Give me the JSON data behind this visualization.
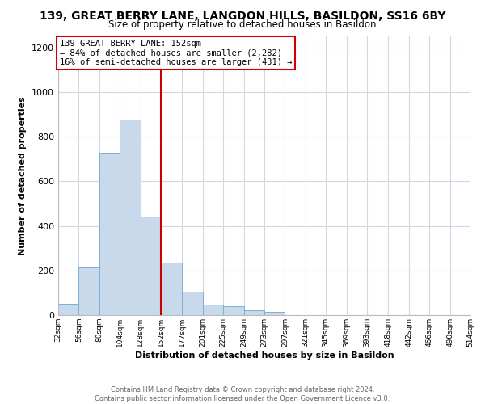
{
  "title_line1": "139, GREAT BERRY LANE, LANGDON HILLS, BASILDON, SS16 6BY",
  "title_line2": "Size of property relative to detached houses in Basildon",
  "xlabel": "Distribution of detached houses by size in Basildon",
  "ylabel": "Number of detached properties",
  "footnote_line1": "Contains HM Land Registry data © Crown copyright and database right 2024.",
  "footnote_line2": "Contains public sector information licensed under the Open Government Licence v3.0.",
  "bin_edges": [
    32,
    56,
    80,
    104,
    128,
    152,
    177,
    201,
    225,
    249,
    273,
    297,
    321,
    345,
    369,
    393,
    418,
    442,
    466,
    490,
    514
  ],
  "bin_counts": [
    52,
    213,
    730,
    878,
    443,
    235,
    105,
    48,
    40,
    20,
    13,
    0,
    0,
    0,
    0,
    0,
    0,
    0,
    0,
    0
  ],
  "bar_facecolor": "#c8d9ec",
  "bar_edgecolor": "#7bafd4",
  "vline_x": 152,
  "vline_color": "#cc0000",
  "annotation_box_color": "#cc0000",
  "annotation_line1": "139 GREAT BERRY LANE: 152sqm",
  "annotation_line2": "← 84% of detached houses are smaller (2,282)",
  "annotation_line3": "16% of semi-detached houses are larger (431) →",
  "ylim": [
    0,
    1250
  ],
  "yticks": [
    0,
    200,
    400,
    600,
    800,
    1000,
    1200
  ],
  "tick_labels": [
    "32sqm",
    "56sqm",
    "80sqm",
    "104sqm",
    "128sqm",
    "152sqm",
    "177sqm",
    "201sqm",
    "225sqm",
    "249sqm",
    "273sqm",
    "297sqm",
    "321sqm",
    "345sqm",
    "369sqm",
    "393sqm",
    "418sqm",
    "442sqm",
    "466sqm",
    "490sqm",
    "514sqm"
  ],
  "background_color": "#ffffff",
  "grid_color": "#d0d8e4",
  "footnote_color": "#666666"
}
